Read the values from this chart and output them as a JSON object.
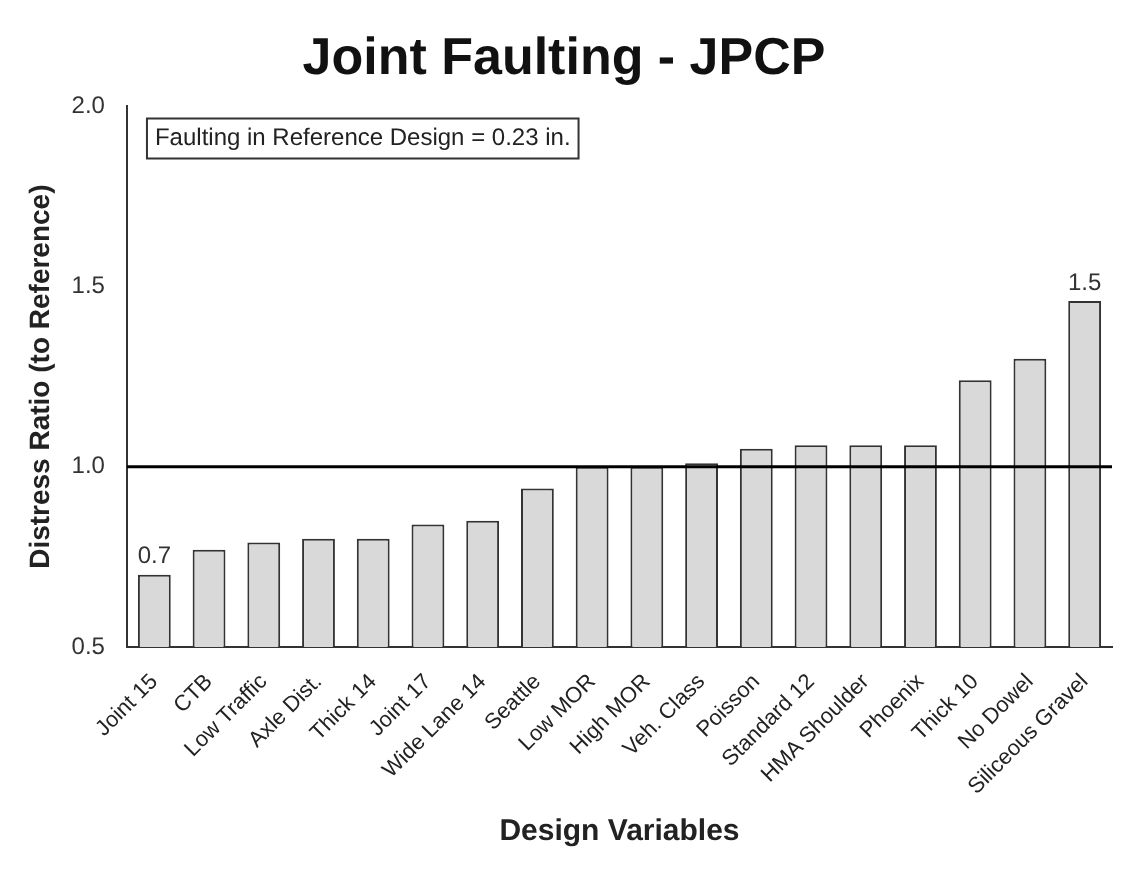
{
  "chart_data": {
    "type": "bar",
    "title": "Joint Faulting - JPCP",
    "xlabel": "Design Variables",
    "ylabel": "Distress Ratio (to Reference)",
    "categories": [
      "Joint 15",
      "CTB",
      "Low Traffic",
      "Axle Dist.",
      "Thick 14",
      "Joint 17",
      "Wide Lane 14",
      "Seattle",
      "Low MOR",
      "High MOR",
      "Veh. Class",
      "Poisson",
      "Standard 12",
      "HMA Shoulder",
      "Phoenix",
      "Thick 10",
      "No Dowel",
      "Siliceous Gravel"
    ],
    "values": [
      0.7,
      0.77,
      0.79,
      0.8,
      0.8,
      0.84,
      0.85,
      0.94,
      1.0,
      1.0,
      1.01,
      1.05,
      1.06,
      1.06,
      1.06,
      1.24,
      1.3,
      1.46
    ],
    "value_labels": [
      "0.7",
      null,
      null,
      null,
      null,
      null,
      null,
      null,
      null,
      null,
      null,
      null,
      null,
      null,
      null,
      null,
      null,
      "1.5"
    ],
    "color": "#d9d9d9",
    "ylim": [
      0.5,
      2.0
    ],
    "yticks": [
      {
        "value": 0.5,
        "label": "0.5"
      },
      {
        "value": 1.0,
        "label": "1.0"
      },
      {
        "value": 1.5,
        "label": "1.5"
      },
      {
        "value": 2.0,
        "label": "2.0"
      }
    ],
    "grid": false,
    "legend": false,
    "ref_lines": [
      {
        "axis": "y",
        "value": 1.0,
        "color": "#000000"
      }
    ],
    "annotations": [
      "Faulting in Reference Design = 0.23 in."
    ]
  }
}
